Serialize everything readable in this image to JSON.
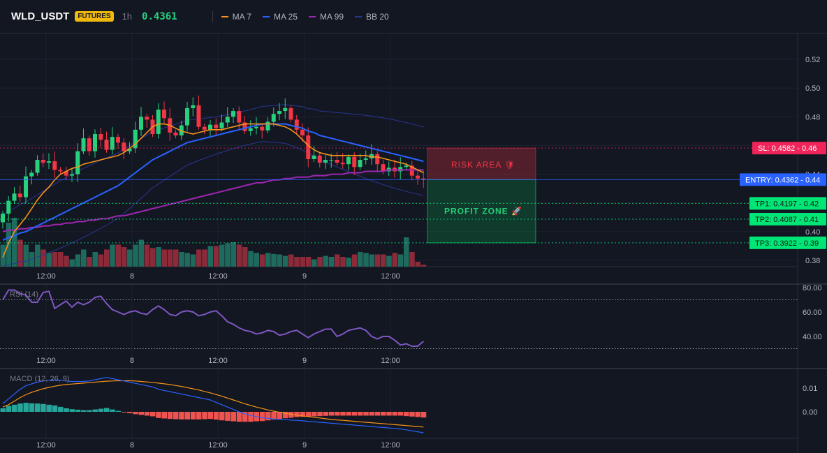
{
  "header": {
    "symbol": "WLD_USDT",
    "badge": "FUTURES",
    "timeframe": "1h",
    "price": "0.4361",
    "legend": [
      {
        "label": "MA 7",
        "color": "#f7931a"
      },
      {
        "label": "MA 25",
        "color": "#2962ff"
      },
      {
        "label": "MA 99",
        "color": "#9c27b0"
      },
      {
        "label": "BB 20",
        "color": "#283593"
      }
    ]
  },
  "chart_data": [
    {
      "type": "candlestick",
      "title": "",
      "ylim": [
        0.37,
        0.53
      ],
      "y_ticks": [
        0.38,
        0.4,
        0.42,
        0.44,
        0.46,
        0.48,
        0.5,
        0.52
      ],
      "x_ticks": [
        "12:00",
        "8",
        "12:00",
        "9",
        "12:00"
      ],
      "ohlc_close": [
        0.4125,
        0.4215,
        0.4265,
        0.424,
        0.4385,
        0.441,
        0.45,
        0.448,
        0.449,
        0.443,
        0.442,
        0.439,
        0.44,
        0.456,
        0.465,
        0.456,
        0.468,
        0.464,
        0.457,
        0.466,
        0.462,
        0.456,
        0.458,
        0.471,
        0.48,
        0.478,
        0.468,
        0.485,
        0.479,
        0.469,
        0.467,
        0.474,
        0.486,
        0.488,
        0.473,
        0.471,
        0.4745,
        0.472,
        0.476,
        0.48,
        0.484,
        0.476,
        0.47,
        0.472,
        0.473,
        0.4705,
        0.4765,
        0.482,
        0.484,
        0.486,
        0.478,
        0.471,
        0.467,
        0.4505,
        0.453,
        0.448,
        0.45,
        0.45,
        0.448,
        0.447,
        0.452,
        0.445,
        0.45,
        0.451,
        0.454,
        0.447,
        0.442,
        0.4445,
        0.442,
        0.445,
        0.446,
        0.439,
        0.437,
        0.4361
      ],
      "ma7": [
        0.382,
        0.392,
        0.4,
        0.405,
        0.41,
        0.416,
        0.422,
        0.427,
        0.431,
        0.436,
        0.44,
        0.442,
        0.444,
        0.445,
        0.447,
        0.448,
        0.449,
        0.45,
        0.451,
        0.452,
        0.453,
        0.455,
        0.458,
        0.461,
        0.465,
        0.469,
        0.473,
        0.475,
        0.475,
        0.474,
        0.472,
        0.47,
        0.469,
        0.468,
        0.469,
        0.47,
        0.471,
        0.471,
        0.471,
        0.472,
        0.473,
        0.474,
        0.475,
        0.475,
        0.475,
        0.475,
        0.475,
        0.475,
        0.474,
        0.473,
        0.471,
        0.468,
        0.464,
        0.46,
        0.457,
        0.455,
        0.454,
        0.453,
        0.453,
        0.453,
        0.453,
        0.453,
        0.453,
        0.453,
        0.452,
        0.452,
        0.451,
        0.45,
        0.449,
        0.448,
        0.447,
        0.445,
        0.443,
        0.441
      ],
      "ma25": [
        0.394,
        0.396,
        0.397,
        0.399,
        0.4,
        0.402,
        0.404,
        0.406,
        0.408,
        0.41,
        0.412,
        0.414,
        0.416,
        0.418,
        0.42,
        0.422,
        0.424,
        0.426,
        0.428,
        0.43,
        0.432,
        0.435,
        0.438,
        0.441,
        0.444,
        0.447,
        0.45,
        0.452,
        0.454,
        0.456,
        0.458,
        0.46,
        0.462,
        0.463,
        0.464,
        0.465,
        0.466,
        0.467,
        0.468,
        0.469,
        0.47,
        0.471,
        0.472,
        0.473,
        0.474,
        0.475,
        0.475,
        0.475,
        0.475,
        0.475,
        0.474,
        0.473,
        0.472,
        0.47,
        0.469,
        0.467,
        0.466,
        0.465,
        0.464,
        0.463,
        0.462,
        0.461,
        0.46,
        0.459,
        0.458,
        0.457,
        0.456,
        0.455,
        0.454,
        0.453,
        0.452,
        0.451,
        0.45,
        0.449
      ],
      "ma99": [
        0.4,
        0.401,
        0.401,
        0.402,
        0.402,
        0.403,
        0.403,
        0.404,
        0.404,
        0.405,
        0.405,
        0.406,
        0.406,
        0.407,
        0.407,
        0.408,
        0.408,
        0.409,
        0.409,
        0.41,
        0.411,
        0.411,
        0.412,
        0.413,
        0.414,
        0.415,
        0.416,
        0.417,
        0.418,
        0.419,
        0.42,
        0.421,
        0.422,
        0.423,
        0.424,
        0.425,
        0.426,
        0.427,
        0.428,
        0.429,
        0.43,
        0.431,
        0.432,
        0.433,
        0.434,
        0.434,
        0.435,
        0.436,
        0.436,
        0.437,
        0.437,
        0.438,
        0.438,
        0.438,
        0.439,
        0.439,
        0.439,
        0.44,
        0.44,
        0.44,
        0.441,
        0.441,
        0.441,
        0.442,
        0.442,
        0.442,
        0.442,
        0.443,
        0.443,
        0.443,
        0.443,
        0.443,
        0.443,
        0.443
      ],
      "volume_ratio": [
        0.45,
        0.9,
        1.0,
        0.55,
        0.45,
        0.3,
        0.45,
        0.35,
        0.28,
        0.3,
        0.3,
        0.22,
        0.15,
        0.25,
        0.35,
        0.2,
        0.3,
        0.25,
        0.35,
        0.45,
        0.45,
        0.4,
        0.35,
        0.45,
        0.55,
        0.45,
        0.38,
        0.4,
        0.35,
        0.35,
        0.35,
        0.3,
        0.28,
        0.25,
        0.35,
        0.35,
        0.42,
        0.42,
        0.45,
        0.48,
        0.5,
        0.45,
        0.4,
        0.32,
        0.28,
        0.25,
        0.28,
        0.26,
        0.25,
        0.22,
        0.25,
        0.2,
        0.2,
        0.2,
        0.15,
        0.2,
        0.22,
        0.2,
        0.25,
        0.2,
        0.18,
        0.25,
        0.3,
        0.28,
        0.25,
        0.25,
        0.25,
        0.22,
        0.28,
        0.25,
        0.6,
        0.3,
        0.1,
        0.04
      ]
    },
    {
      "type": "line",
      "title": "RSI (14)",
      "ylim": [
        30,
        82
      ],
      "y_ticks": [
        40.0,
        60.0,
        80.0
      ],
      "x_ticks": [
        "12:00",
        "8",
        "12:00",
        "9",
        "12:00"
      ],
      "values": [
        70,
        78,
        78,
        75,
        74,
        68,
        68,
        76,
        77,
        63,
        66,
        69,
        64,
        68,
        66,
        68,
        72,
        73,
        67,
        62,
        60,
        58,
        60,
        61,
        59,
        58,
        62,
        65,
        62,
        58,
        57,
        60,
        61,
        60,
        57,
        58,
        60,
        61,
        57,
        52,
        50,
        47,
        45,
        44,
        42,
        43,
        45,
        44,
        41,
        42,
        44,
        45,
        42,
        39,
        42,
        44,
        46,
        46,
        40,
        42,
        45,
        46,
        47,
        45,
        40,
        38,
        40,
        40,
        37,
        33,
        34,
        32,
        32,
        36
      ]
    },
    {
      "type": "line",
      "title": "MACD (12, 26, 9)",
      "ylim": [
        -0.014,
        0.016
      ],
      "y_ticks": [
        0.0,
        0.01
      ],
      "x_ticks": [
        "12:00",
        "8",
        "12:00",
        "9",
        "12:00"
      ],
      "macd": [
        0.0035,
        0.0055,
        0.0075,
        0.0095,
        0.011,
        0.0118,
        0.0125,
        0.013,
        0.0133,
        0.0135,
        0.0133,
        0.013,
        0.0128,
        0.0128,
        0.0128,
        0.013,
        0.0135,
        0.014,
        0.0145,
        0.014,
        0.0135,
        0.013,
        0.0125,
        0.012,
        0.0115,
        0.011,
        0.0105,
        0.0095,
        0.009,
        0.0085,
        0.008,
        0.0075,
        0.007,
        0.0065,
        0.006,
        0.0055,
        0.005,
        0.004,
        0.003,
        0.002,
        0.001,
        0.0,
        -0.0008,
        -0.0015,
        -0.002,
        -0.0025,
        -0.0028,
        -0.003,
        -0.0032,
        -0.0033,
        -0.0035,
        -0.0036,
        -0.0038,
        -0.004,
        -0.0042,
        -0.0044,
        -0.0046,
        -0.0048,
        -0.005,
        -0.0052,
        -0.0054,
        -0.0056,
        -0.0058,
        -0.006,
        -0.0062,
        -0.0064,
        -0.0066,
        -0.0068,
        -0.007,
        -0.0072,
        -0.0076,
        -0.008,
        -0.0084,
        -0.0088
      ],
      "signal": [
        0.002,
        0.003,
        0.0045,
        0.006,
        0.0072,
        0.0082,
        0.009,
        0.0097,
        0.0103,
        0.0108,
        0.0112,
        0.0115,
        0.0117,
        0.0119,
        0.0121,
        0.0123,
        0.0125,
        0.0127,
        0.0129,
        0.013,
        0.0131,
        0.0131,
        0.0131,
        0.013,
        0.0128,
        0.0126,
        0.0124,
        0.0121,
        0.0118,
        0.0115,
        0.0111,
        0.0107,
        0.0102,
        0.0097,
        0.0092,
        0.0086,
        0.008,
        0.0073,
        0.0066,
        0.0058,
        0.005,
        0.0042,
        0.0034,
        0.0027,
        0.002,
        0.0014,
        0.0008,
        0.0003,
        -0.0002,
        -0.0006,
        -0.001,
        -0.0014,
        -0.0017,
        -0.002,
        -0.0023,
        -0.0026,
        -0.0029,
        -0.0032,
        -0.0034,
        -0.0036,
        -0.0038,
        -0.004,
        -0.0042,
        -0.0044,
        -0.0046,
        -0.0048,
        -0.005,
        -0.0052,
        -0.0054,
        -0.0056,
        -0.0058,
        -0.006,
        -0.0062,
        -0.0064
      ],
      "histogram": [
        0.0015,
        0.0025,
        0.003,
        0.0035,
        0.0038,
        0.0036,
        0.0035,
        0.0033,
        0.003,
        0.0027,
        0.0021,
        0.0015,
        0.0011,
        0.0009,
        0.0007,
        0.0007,
        0.001,
        0.0013,
        0.0016,
        0.001,
        0.0004,
        -0.0001,
        -0.0006,
        -0.001,
        -0.0013,
        -0.0016,
        -0.0019,
        -0.0026,
        -0.0028,
        -0.003,
        -0.0031,
        -0.0032,
        -0.0032,
        -0.0032,
        -0.0032,
        -0.0031,
        -0.003,
        -0.0033,
        -0.0036,
        -0.0038,
        -0.004,
        -0.0042,
        -0.0042,
        -0.0042,
        -0.004,
        -0.0039,
        -0.0036,
        -0.0033,
        -0.003,
        -0.0027,
        -0.0025,
        -0.0022,
        -0.0021,
        -0.002,
        -0.0019,
        -0.0018,
        -0.0017,
        -0.0016,
        -0.0016,
        -0.0016,
        -0.0016,
        -0.0016,
        -0.0016,
        -0.0016,
        -0.0016,
        -0.0016,
        -0.0016,
        -0.0016,
        -0.0016,
        -0.0016,
        -0.0018,
        -0.002,
        -0.0022,
        -0.0024
      ]
    }
  ],
  "levels": {
    "sl": {
      "label": "SL: 0.4582",
      "axis": "0.46",
      "value": 0.4582,
      "color": "#f0245a"
    },
    "entry": {
      "label": "ENTRY: 0.4362",
      "axis": "0.44",
      "value": 0.4362,
      "color": "#2962ff"
    },
    "tp1": {
      "label": "TP1: 0.4197",
      "axis": "0.42",
      "value": 0.4197,
      "color": "#00e676"
    },
    "tp2": {
      "label": "TP2: 0.4087",
      "axis": "0.41",
      "value": 0.4087,
      "color": "#00e676"
    },
    "tp3": {
      "label": "TP3: 0.3922",
      "axis": "0.39",
      "value": 0.3922,
      "color": "#00e676"
    }
  },
  "zones": {
    "risk": {
      "label": "RISK AREA 🛡"
    },
    "profit": {
      "label": "PROFIT ZONE 🚀"
    }
  },
  "colors": {
    "up": "#26d07c",
    "down": "#f23645",
    "vol_up": "#1e6b5e",
    "vol_down": "#8c2a3a",
    "rsi": "#7e57c2",
    "macd": "#2962ff",
    "signal": "#f7931a",
    "hist_up": "#26a69a",
    "hist_down": "#ef5350"
  }
}
